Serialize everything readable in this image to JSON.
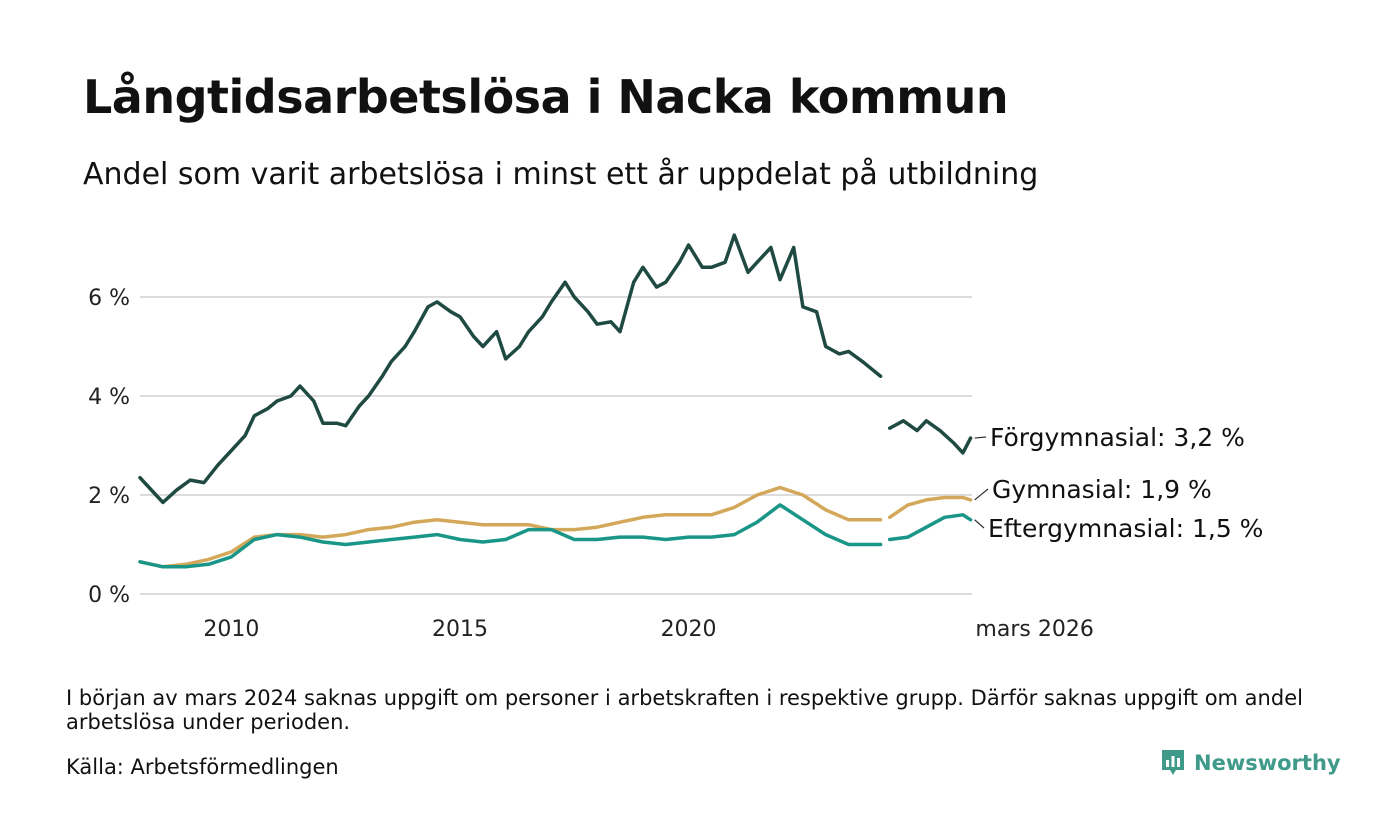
{
  "title": "Långtidsarbetslösa i Nacka kommun",
  "subtitle": "Andel som varit arbetslösa i minst ett år uppdelat på utbildning",
  "footnote": "I början av mars 2024 saknas uppgift om personer i arbetskraften i respektive grupp. Därför saknas uppgift om andel arbetslösa under perioden.",
  "source": "Källa: Arbetsförmedlingen",
  "brand": {
    "name": "Newsworthy",
    "icon": "newsworthy-logo-icon",
    "color": "#3f9a8a"
  },
  "chart_data": {
    "type": "line",
    "title": "Långtidsarbetslösa i Nacka kommun",
    "xlabel": "",
    "ylabel": "",
    "x_range": [
      2008.0,
      2026.2
    ],
    "ylim": [
      0,
      7.5
    ],
    "y_ticks": [
      0,
      2,
      4,
      6
    ],
    "y_tick_labels": [
      "0 %",
      "2 %",
      "4 %",
      "6 %"
    ],
    "x_ticks": [
      2010,
      2015,
      2020,
      2026.17
    ],
    "x_tick_labels": [
      "2010",
      "2015",
      "2020",
      "mars 2026"
    ],
    "gap": [
      2023.9,
      2024.3
    ],
    "grid": true,
    "series": [
      {
        "name": "Förgymnasial",
        "label": "Förgymnasial: 3,2 %",
        "color": "#1f4a42",
        "points": [
          [
            2008.0,
            2.35
          ],
          [
            2008.3,
            2.05
          ],
          [
            2008.5,
            1.85
          ],
          [
            2008.8,
            2.1
          ],
          [
            2009.1,
            2.3
          ],
          [
            2009.4,
            2.25
          ],
          [
            2009.7,
            2.6
          ],
          [
            2010.0,
            2.9
          ],
          [
            2010.3,
            3.2
          ],
          [
            2010.5,
            3.6
          ],
          [
            2010.8,
            3.75
          ],
          [
            2011.0,
            3.9
          ],
          [
            2011.3,
            4.0
          ],
          [
            2011.5,
            4.2
          ],
          [
            2011.8,
            3.9
          ],
          [
            2012.0,
            3.45
          ],
          [
            2012.3,
            3.45
          ],
          [
            2012.5,
            3.4
          ],
          [
            2012.8,
            3.8
          ],
          [
            2013.0,
            4.0
          ],
          [
            2013.3,
            4.4
          ],
          [
            2013.5,
            4.7
          ],
          [
            2013.8,
            5.0
          ],
          [
            2014.0,
            5.3
          ],
          [
            2014.3,
            5.8
          ],
          [
            2014.5,
            5.9
          ],
          [
            2014.8,
            5.7
          ],
          [
            2015.0,
            5.6
          ],
          [
            2015.3,
            5.2
          ],
          [
            2015.5,
            5.0
          ],
          [
            2015.8,
            5.3
          ],
          [
            2016.0,
            4.75
          ],
          [
            2016.3,
            5.0
          ],
          [
            2016.5,
            5.3
          ],
          [
            2016.8,
            5.6
          ],
          [
            2017.0,
            5.9
          ],
          [
            2017.3,
            6.3
          ],
          [
            2017.5,
            6.0
          ],
          [
            2017.8,
            5.7
          ],
          [
            2018.0,
            5.45
          ],
          [
            2018.3,
            5.5
          ],
          [
            2018.5,
            5.3
          ],
          [
            2018.8,
            6.3
          ],
          [
            2019.0,
            6.6
          ],
          [
            2019.3,
            6.2
          ],
          [
            2019.5,
            6.3
          ],
          [
            2019.8,
            6.7
          ],
          [
            2020.0,
            7.05
          ],
          [
            2020.3,
            6.6
          ],
          [
            2020.5,
            6.6
          ],
          [
            2020.8,
            6.7
          ],
          [
            2021.0,
            7.25
          ],
          [
            2021.3,
            6.5
          ],
          [
            2021.5,
            6.7
          ],
          [
            2021.8,
            7.0
          ],
          [
            2022.0,
            6.35
          ],
          [
            2022.3,
            7.0
          ],
          [
            2022.5,
            5.8
          ],
          [
            2022.8,
            5.7
          ],
          [
            2023.0,
            5.0
          ],
          [
            2023.3,
            4.85
          ],
          [
            2023.5,
            4.9
          ],
          [
            2023.8,
            4.7
          ],
          [
            2024.0,
            4.55
          ],
          [
            2024.2,
            4.4
          ],
          null,
          [
            2024.4,
            3.35
          ],
          [
            2024.7,
            3.5
          ],
          [
            2025.0,
            3.3
          ],
          [
            2025.2,
            3.5
          ],
          [
            2025.5,
            3.3
          ],
          [
            2025.8,
            3.05
          ],
          [
            2026.0,
            2.85
          ],
          [
            2026.17,
            3.15
          ]
        ]
      },
      {
        "name": "Gymnasial",
        "label": "Gymnasial: 1,9 %",
        "color": "#d4a85a",
        "points": [
          [
            2008.0,
            0.65
          ],
          [
            2008.5,
            0.55
          ],
          [
            2009.0,
            0.6
          ],
          [
            2009.5,
            0.7
          ],
          [
            2010.0,
            0.85
          ],
          [
            2010.5,
            1.15
          ],
          [
            2011.0,
            1.2
          ],
          [
            2011.5,
            1.2
          ],
          [
            2012.0,
            1.15
          ],
          [
            2012.5,
            1.2
          ],
          [
            2013.0,
            1.3
          ],
          [
            2013.5,
            1.35
          ],
          [
            2014.0,
            1.45
          ],
          [
            2014.5,
            1.5
          ],
          [
            2015.0,
            1.45
          ],
          [
            2015.5,
            1.4
          ],
          [
            2016.0,
            1.4
          ],
          [
            2016.5,
            1.4
          ],
          [
            2017.0,
            1.3
          ],
          [
            2017.5,
            1.3
          ],
          [
            2018.0,
            1.35
          ],
          [
            2018.5,
            1.45
          ],
          [
            2019.0,
            1.55
          ],
          [
            2019.5,
            1.6
          ],
          [
            2020.0,
            1.6
          ],
          [
            2020.5,
            1.6
          ],
          [
            2021.0,
            1.75
          ],
          [
            2021.5,
            2.0
          ],
          [
            2022.0,
            2.15
          ],
          [
            2022.5,
            2.0
          ],
          [
            2023.0,
            1.7
          ],
          [
            2023.5,
            1.5
          ],
          [
            2024.0,
            1.5
          ],
          [
            2024.2,
            1.5
          ],
          null,
          [
            2024.4,
            1.55
          ],
          [
            2024.8,
            1.8
          ],
          [
            2025.2,
            1.9
          ],
          [
            2025.6,
            1.95
          ],
          [
            2026.0,
            1.95
          ],
          [
            2026.17,
            1.9
          ]
        ]
      },
      {
        "name": "Eftergymnasial",
        "label": "Eftergymnasial: 1,5 %",
        "color": "#1a9688",
        "points": [
          [
            2008.0,
            0.65
          ],
          [
            2008.5,
            0.55
          ],
          [
            2009.0,
            0.55
          ],
          [
            2009.5,
            0.6
          ],
          [
            2010.0,
            0.75
          ],
          [
            2010.5,
            1.1
          ],
          [
            2011.0,
            1.2
          ],
          [
            2011.5,
            1.15
          ],
          [
            2012.0,
            1.05
          ],
          [
            2012.5,
            1.0
          ],
          [
            2013.0,
            1.05
          ],
          [
            2013.5,
            1.1
          ],
          [
            2014.0,
            1.15
          ],
          [
            2014.5,
            1.2
          ],
          [
            2015.0,
            1.1
          ],
          [
            2015.5,
            1.05
          ],
          [
            2016.0,
            1.1
          ],
          [
            2016.5,
            1.3
          ],
          [
            2017.0,
            1.3
          ],
          [
            2017.5,
            1.1
          ],
          [
            2018.0,
            1.1
          ],
          [
            2018.5,
            1.15
          ],
          [
            2019.0,
            1.15
          ],
          [
            2019.5,
            1.1
          ],
          [
            2020.0,
            1.15
          ],
          [
            2020.5,
            1.15
          ],
          [
            2021.0,
            1.2
          ],
          [
            2021.5,
            1.45
          ],
          [
            2022.0,
            1.8
          ],
          [
            2022.5,
            1.5
          ],
          [
            2023.0,
            1.2
          ],
          [
            2023.5,
            1.0
          ],
          [
            2024.0,
            1.0
          ],
          [
            2024.2,
            1.0
          ],
          null,
          [
            2024.4,
            1.1
          ],
          [
            2024.8,
            1.15
          ],
          [
            2025.2,
            1.35
          ],
          [
            2025.6,
            1.55
          ],
          [
            2026.0,
            1.6
          ],
          [
            2026.17,
            1.5
          ]
        ]
      }
    ]
  }
}
